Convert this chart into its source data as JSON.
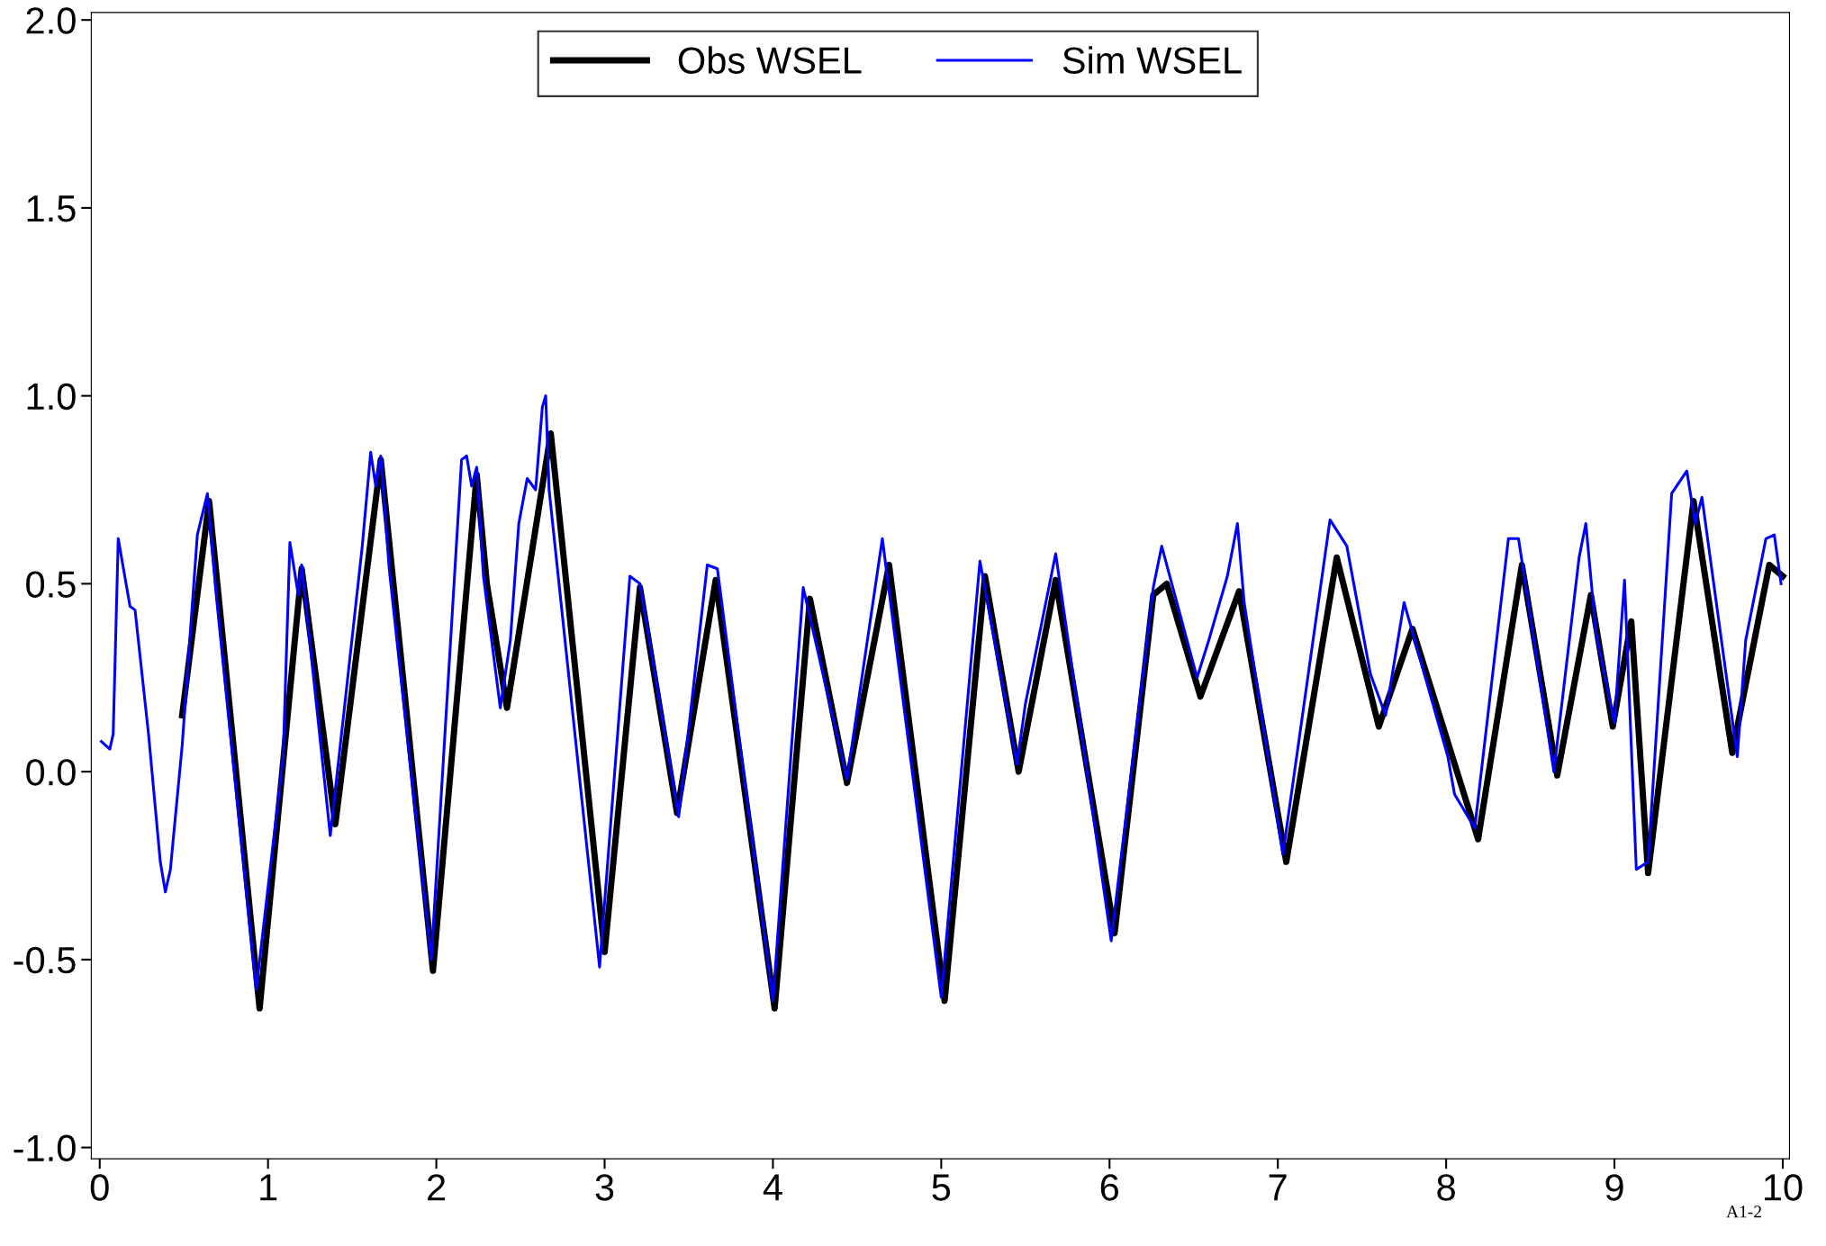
{
  "chart_data": {
    "type": "line",
    "xlim": [
      -0.05,
      10.04
    ],
    "ylim": [
      -1.03,
      2.02
    ],
    "xticks": [
      0,
      1,
      2,
      3,
      4,
      5,
      6,
      7,
      8,
      9,
      10
    ],
    "yticks": [
      {
        "value": -1,
        "label": "-1.0"
      },
      -0.5,
      {
        "value": 0,
        "label": "0.0"
      },
      0.5,
      {
        "value": 1,
        "label": "1.0"
      },
      1.5,
      {
        "value": 2,
        "label": "2.0"
      }
    ],
    "grid": false,
    "legend": "top",
    "marker": "none",
    "line_style": "solid",
    "annotations": [
      "A1-2"
    ],
    "series": [
      {
        "name": "Obs WSEL",
        "color": "#000000",
        "x": [
          0.49,
          0.65,
          0.95,
          1.2,
          1.4,
          1.67,
          1.98,
          2.24,
          2.3,
          2.42,
          2.68,
          3.0,
          3.21,
          3.43,
          3.66,
          4.01,
          4.22,
          4.44,
          4.69,
          5.02,
          5.26,
          5.46,
          5.68,
          6.03,
          6.26,
          6.34,
          6.54,
          6.77,
          7.05,
          7.35,
          7.6,
          7.8,
          8.19,
          8.45,
          8.66,
          8.86,
          8.99,
          9.1,
          9.2,
          9.47,
          9.7,
          9.92,
          10.0
        ],
        "values": [
          0.15,
          0.72,
          -0.63,
          0.54,
          -0.14,
          0.83,
          -0.53,
          0.79,
          0.5,
          0.17,
          0.9,
          -0.48,
          0.49,
          -0.11,
          0.51,
          -0.63,
          0.46,
          -0.03,
          0.55,
          -0.61,
          0.52,
          0.0,
          0.51,
          -0.43,
          0.47,
          0.5,
          0.2,
          0.48,
          -0.24,
          0.57,
          0.12,
          0.38,
          -0.18,
          0.55,
          -0.01,
          0.47,
          0.12,
          0.4,
          -0.27,
          0.72,
          0.05,
          0.55,
          0.52
        ]
      },
      {
        "name": "Sim WSEL",
        "color": "#0000ff",
        "x": [
          0.01,
          0.06,
          0.08,
          0.11,
          0.18,
          0.21,
          0.29,
          0.36,
          0.39,
          0.42,
          0.49,
          0.58,
          0.64,
          0.69,
          0.93,
          1.09,
          1.13,
          1.18,
          1.2,
          1.37,
          1.56,
          1.61,
          1.64,
          1.67,
          1.72,
          1.97,
          2.15,
          2.18,
          2.21,
          2.24,
          2.28,
          2.38,
          2.44,
          2.49,
          2.54,
          2.59,
          2.63,
          2.65,
          2.67,
          2.97,
          3.15,
          3.21,
          3.44,
          3.61,
          3.67,
          4.0,
          4.18,
          4.44,
          4.65,
          5.0,
          5.23,
          5.45,
          5.5,
          5.68,
          6.01,
          6.26,
          6.31,
          6.52,
          6.59,
          6.7,
          6.76,
          6.8,
          7.03,
          7.31,
          7.41,
          7.55,
          7.64,
          7.75,
          8.01,
          8.05,
          8.17,
          8.37,
          8.43,
          8.64,
          8.79,
          8.83,
          8.89,
          9.0,
          9.06,
          9.13,
          9.2,
          9.34,
          9.43,
          9.48,
          9.52,
          9.73,
          9.78,
          9.9,
          9.95,
          9.99
        ],
        "values": [
          0.08,
          0.06,
          0.1,
          0.62,
          0.44,
          0.43,
          0.1,
          -0.24,
          -0.32,
          -0.26,
          0.07,
          0.63,
          0.74,
          0.48,
          -0.58,
          0.04,
          0.61,
          0.47,
          0.55,
          -0.17,
          0.6,
          0.85,
          0.76,
          0.84,
          0.54,
          -0.5,
          0.83,
          0.84,
          0.76,
          0.81,
          0.52,
          0.17,
          0.35,
          0.66,
          0.78,
          0.75,
          0.97,
          1.0,
          0.75,
          -0.52,
          0.52,
          0.5,
          -0.12,
          0.55,
          0.54,
          -0.61,
          0.49,
          -0.02,
          0.62,
          -0.6,
          0.56,
          0.02,
          0.18,
          0.58,
          -0.45,
          0.49,
          0.6,
          0.25,
          0.35,
          0.52,
          0.66,
          0.45,
          -0.22,
          0.67,
          0.6,
          0.26,
          0.15,
          0.45,
          0.04,
          -0.06,
          -0.15,
          0.62,
          0.62,
          0.0,
          0.57,
          0.66,
          0.37,
          0.13,
          0.51,
          -0.26,
          -0.24,
          0.74,
          0.8,
          0.66,
          0.73,
          0.04,
          0.35,
          0.62,
          0.63,
          0.5
        ]
      }
    ]
  }
}
